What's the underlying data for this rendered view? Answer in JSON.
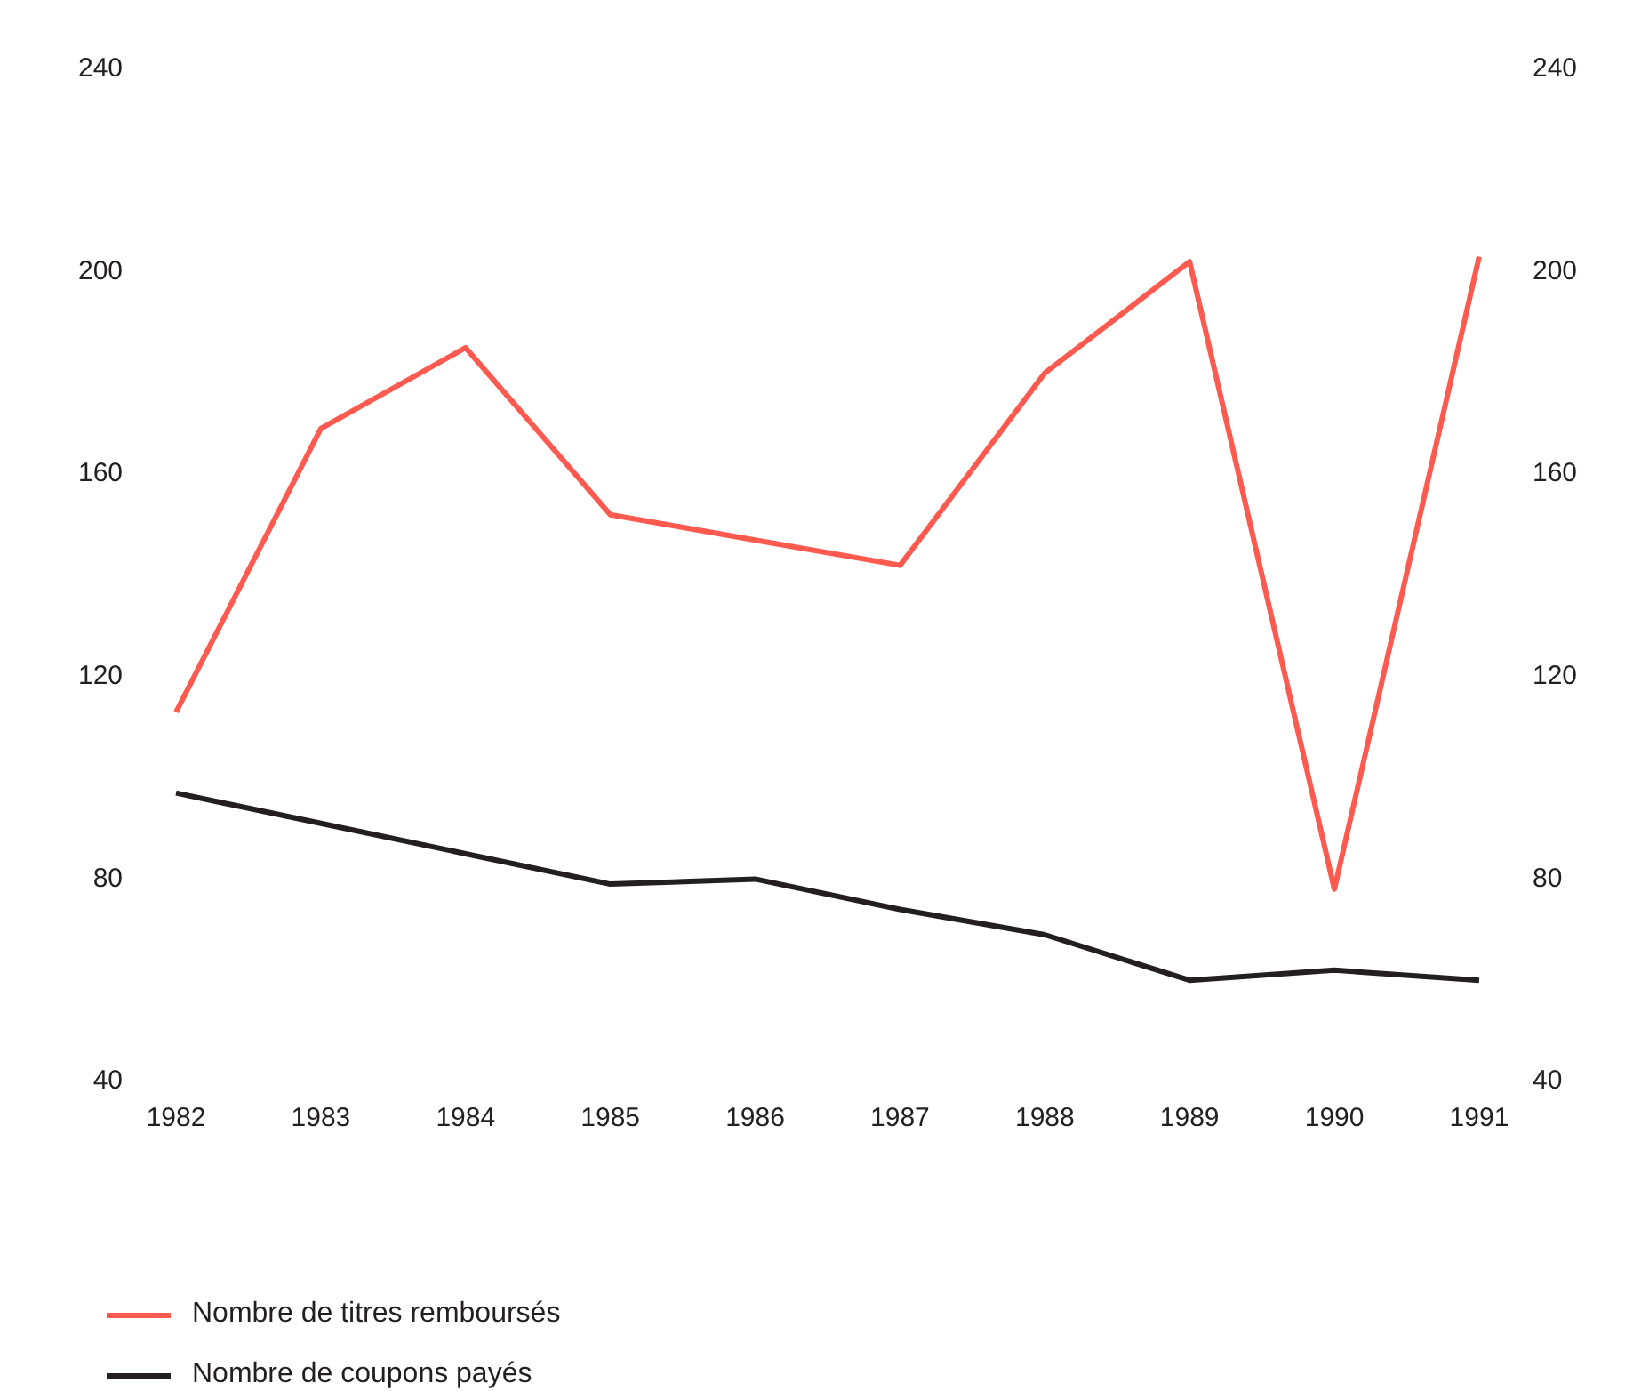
{
  "chart_data": {
    "type": "line",
    "categories": [
      "1982",
      "1983",
      "1984",
      "1985",
      "1986",
      "1987",
      "1988",
      "1989",
      "1990",
      "1991"
    ],
    "series": [
      {
        "name": "Nombre de titres remboursés",
        "color": "#ff5a50",
        "values": [
          113,
          169,
          185,
          152,
          147,
          142,
          180,
          202,
          78,
          203
        ]
      },
      {
        "name": "Nombre de coupons payés",
        "color": "#231f20",
        "values": [
          97,
          91,
          85,
          79,
          80,
          74,
          69,
          60,
          62,
          60
        ]
      }
    ],
    "ylim": [
      40,
      240
    ],
    "yticks": [
      40,
      80,
      120,
      160,
      200,
      240
    ],
    "y2lim": [
      40,
      240
    ],
    "y2ticks": [
      40,
      80,
      120,
      160,
      200,
      240
    ],
    "grid": false,
    "legend": "bottom left",
    "marker": "none",
    "line_style": "solid"
  }
}
